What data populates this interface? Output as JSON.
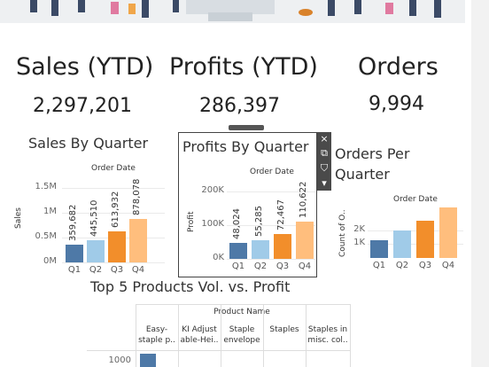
{
  "kpis": {
    "sales_title": "Sales (YTD)",
    "sales_value": "2,297,201",
    "profits_title": "Profits (YTD)",
    "profits_value": "286,397",
    "orders_title": "Orders",
    "orders_value": "9,994"
  },
  "colors": {
    "q1": "#4e79a7",
    "q2": "#a0cbe8",
    "q3": "#f28e2b",
    "q4": "#ffbe7d"
  },
  "toolbar": {
    "close_icon": "×",
    "open_icon": "⧉",
    "filter_icon": "⛉",
    "more_icon": "▾"
  },
  "chart_data": [
    {
      "type": "bar",
      "title": "Sales By Quarter",
      "xlabel": "Order Date",
      "ylabel": "Sales",
      "categories": [
        "Q1",
        "Q2",
        "Q3",
        "Q4"
      ],
      "values": [
        359682,
        445510,
        613932,
        878078
      ],
      "value_labels": [
        "359,682",
        "445,510",
        "613,932",
        "878,078"
      ],
      "yticks": [
        "1.5M",
        "1M",
        "0.5M",
        "0M"
      ],
      "ylim": [
        0,
        1600000
      ]
    },
    {
      "type": "bar",
      "title": "Profits By Quarter",
      "xlabel": "Order Date",
      "ylabel": "Profit",
      "categories": [
        "Q1",
        "Q2",
        "Q3",
        "Q4"
      ],
      "values": [
        48024,
        55285,
        72467,
        110622
      ],
      "value_labels": [
        "48,024",
        "55,285",
        "72,467",
        "110,622"
      ],
      "yticks": [
        "200K",
        "100K",
        "0K"
      ],
      "ylim": [
        0,
        215000
      ]
    },
    {
      "type": "bar",
      "title_line1": "Orders Per",
      "title_line2": "Quarter",
      "xlabel": "Order Date",
      "ylabel": "Count of O..",
      "categories": [
        "Q1",
        "Q2",
        "Q3",
        "Q4"
      ],
      "values": [
        1300,
        2000,
        2700,
        3650
      ],
      "yticks": [
        "2K",
        "1K"
      ],
      "ylim": [
        0,
        4200
      ]
    },
    {
      "type": "table",
      "title": "Top 5 Products Vol. vs. Profit",
      "column_group": "Product Name",
      "columns": [
        [
          "Easy-",
          "staple p.."
        ],
        [
          "KI Adjust",
          "able-Hei.."
        ],
        [
          "Staple",
          "envelope"
        ],
        [
          "Staples",
          ""
        ],
        [
          "Staples in",
          "misc. col.."
        ]
      ],
      "row_tick": "1000"
    }
  ]
}
